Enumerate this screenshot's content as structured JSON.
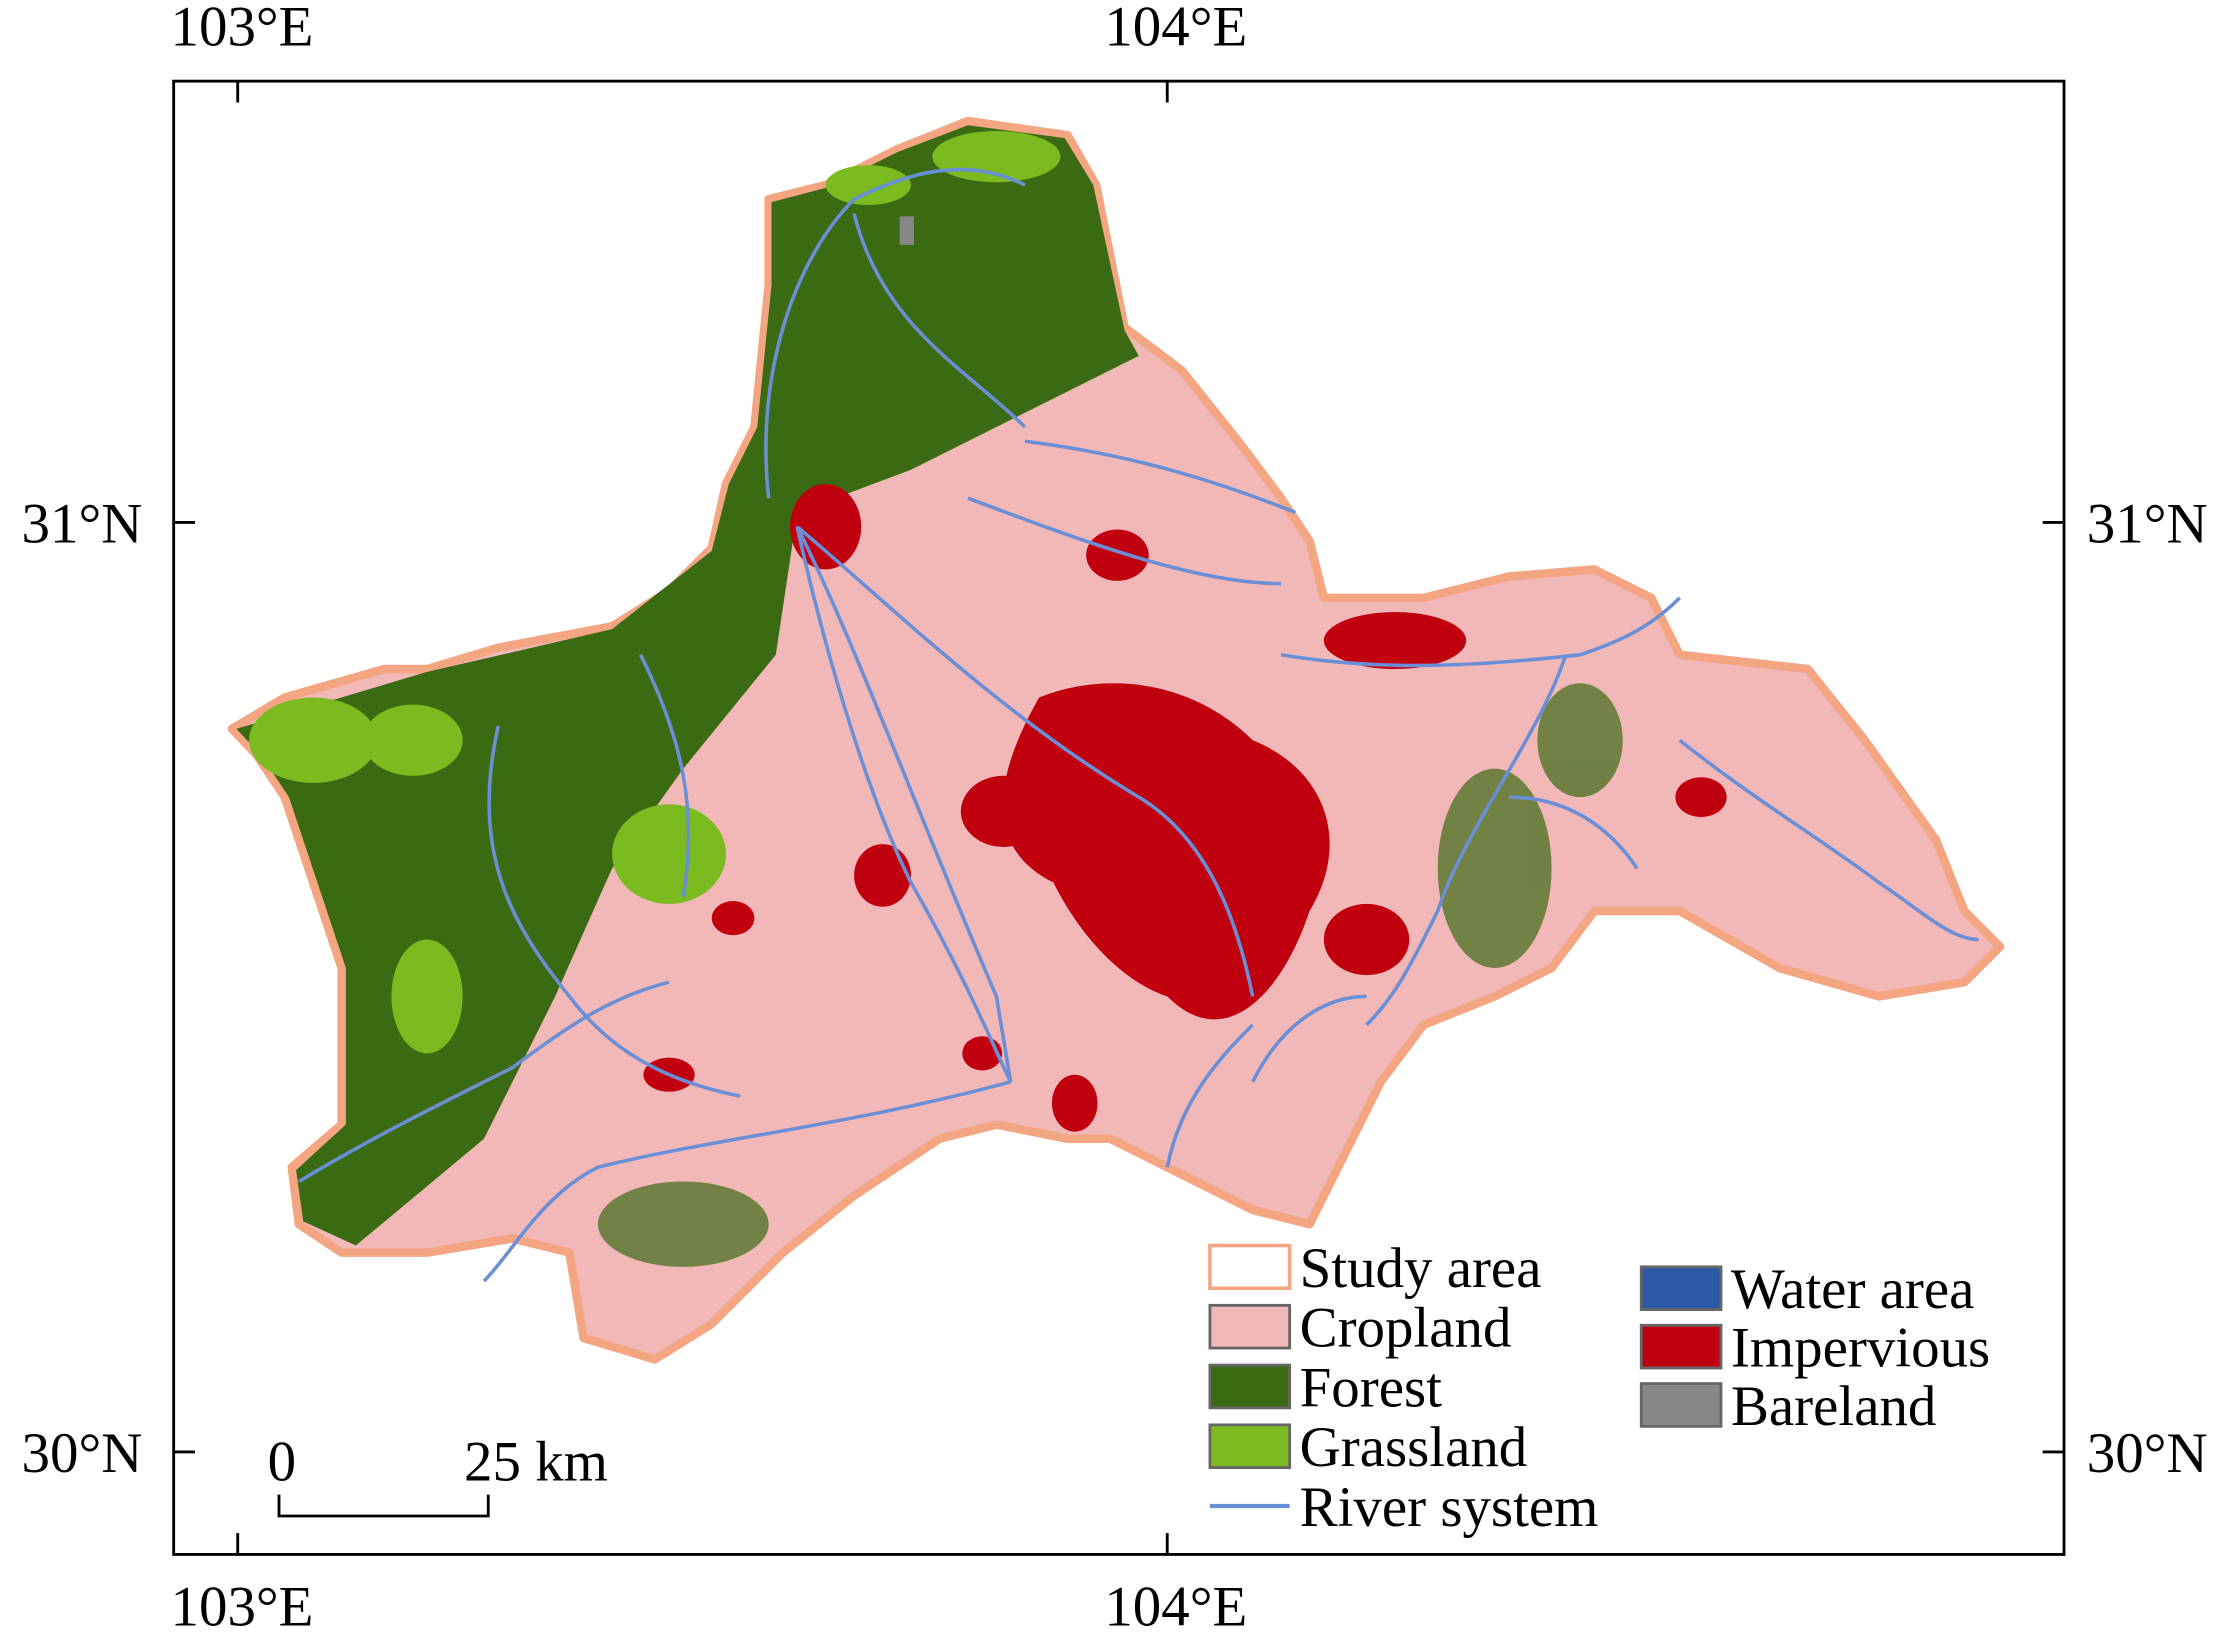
{
  "map": {
    "axes": {
      "top": [
        "103°E",
        "104°E"
      ],
      "bottom": [
        "103°E",
        "104°E"
      ],
      "left": [
        "31°N",
        "30°N"
      ],
      "right": [
        "31°N",
        "30°N"
      ]
    },
    "scale_bar": {
      "labels": [
        "0",
        "25 km"
      ]
    },
    "legend": {
      "items": [
        {
          "label": "Study area",
          "color": "#f4a582",
          "kind": "outline"
        },
        {
          "label": "Cropland",
          "color": "#f2b8b8",
          "kind": "box"
        },
        {
          "label": "Forest",
          "color": "#3a6b12",
          "kind": "box"
        },
        {
          "label": "Grassland",
          "color": "#7cbb1f",
          "kind": "box"
        },
        {
          "label": "River system",
          "color": "#6b8fd6",
          "kind": "line"
        },
        {
          "label": "Water area",
          "color": "#2c5aa8",
          "kind": "box"
        },
        {
          "label": "Impervious",
          "color": "#c0000f",
          "kind": "box"
        },
        {
          "label": "Bareland",
          "color": "#878787",
          "kind": "box"
        }
      ]
    }
  }
}
